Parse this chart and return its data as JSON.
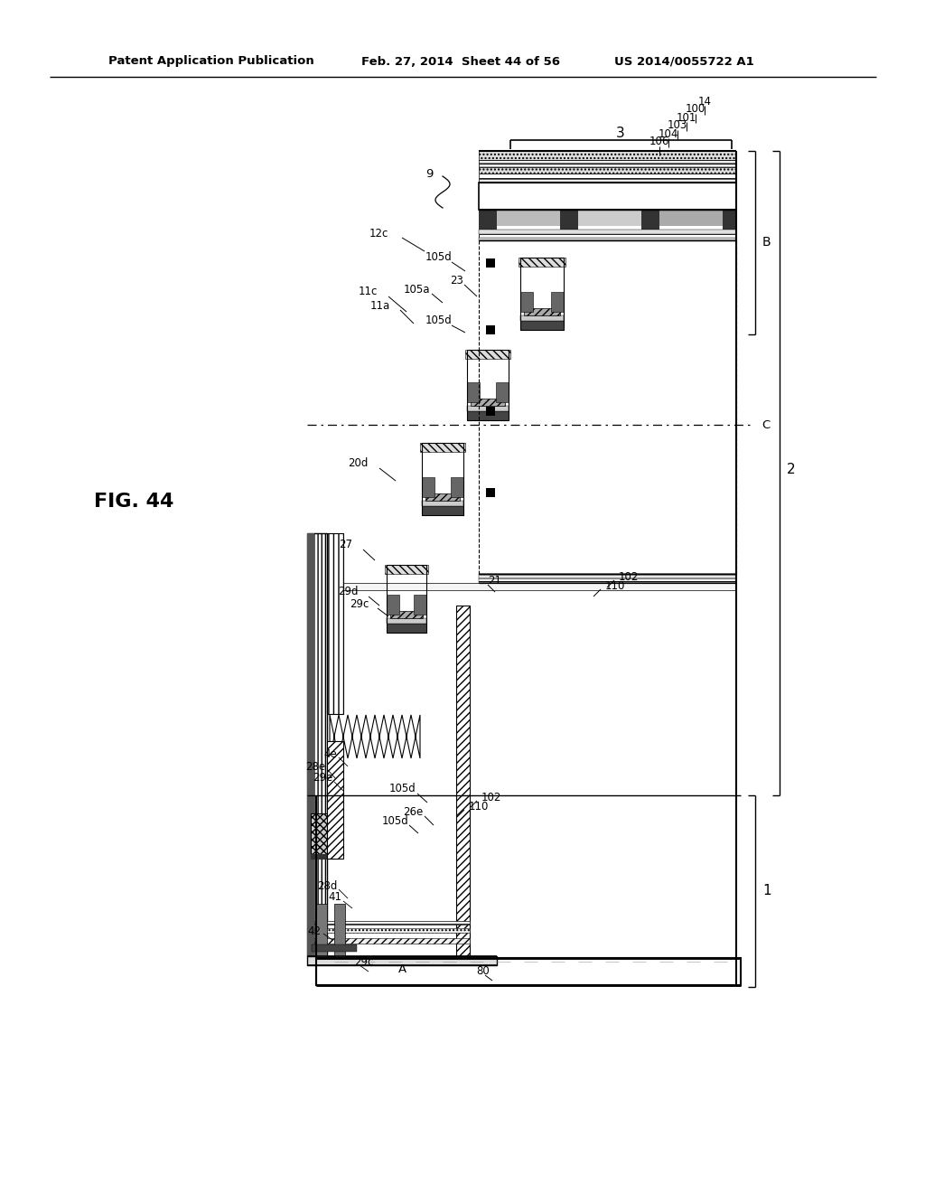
{
  "title_left": "Patent Application Publication",
  "title_mid": "Feb. 27, 2014  Sheet 44 of 56",
  "title_right": "US 2014/0055722 A1",
  "fig_label": "FIG. 44",
  "background": "#ffffff",
  "line_color": "#000000",
  "text_color": "#000000"
}
